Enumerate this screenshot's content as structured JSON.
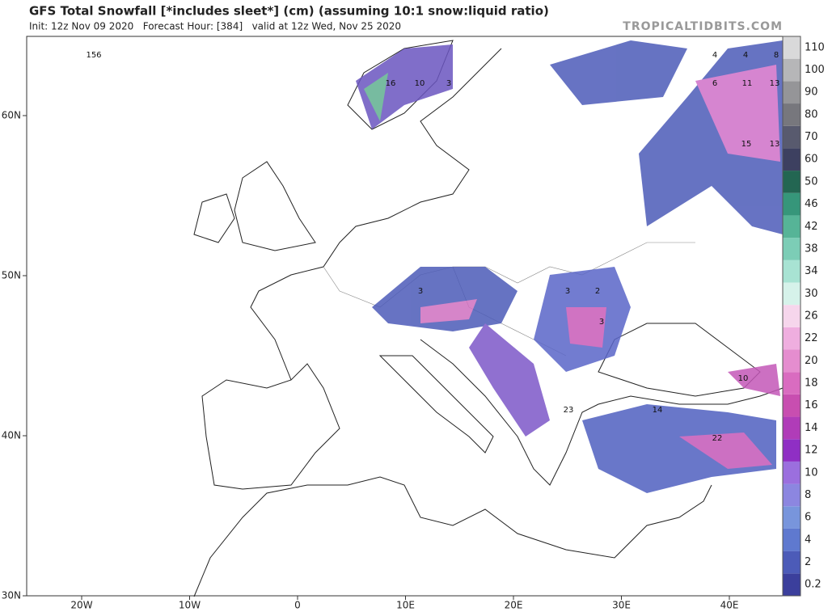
{
  "header": {
    "title": "GFS Total Snowfall [*includes sleet*] (cm) (assuming 10:1 snow:liquid ratio)",
    "subtitle": "Init: 12z Nov 09 2020   Forecast Hour: [384]   valid at 12z Wed, Nov 25 2020",
    "watermark": "TROPICALTIDBITS.COM"
  },
  "map": {
    "lon_ticks": [
      {
        "value": -20,
        "label": "20W"
      },
      {
        "value": -10,
        "label": "10W"
      },
      0,
      {
        "value": 10,
        "label": "10E"
      },
      {
        "value": 20,
        "label": "20E"
      },
      {
        "value": 30,
        "label": "30E"
      },
      {
        "value": 40,
        "label": "40E"
      }
    ],
    "lat_ticks": [
      {
        "value": 30,
        "label": "30N"
      },
      {
        "value": 40,
        "label": "40N"
      },
      {
        "value": 50,
        "label": "50N"
      },
      {
        "value": 60,
        "label": "60N"
      }
    ],
    "labels": [
      "156",
      "16",
      "10",
      "3",
      "4",
      "4",
      "8",
      "6",
      "11",
      "13",
      "15",
      "13",
      "3",
      "3",
      "2",
      "10",
      "14",
      "23",
      "22",
      "3"
    ]
  },
  "colorbar": {
    "ticks": [
      0.2,
      2,
      4,
      6,
      8,
      10,
      12,
      14,
      16,
      18,
      20,
      22,
      26,
      30,
      34,
      38,
      42,
      46,
      50,
      60,
      70,
      80,
      90,
      100,
      110
    ],
    "colors": [
      "#3b3f9c",
      "#4c5bb8",
      "#5f79cf",
      "#7895dc",
      "#8c86e0",
      "#9b6fde",
      "#8f2fc4",
      "#b03cb8",
      "#c84eb0",
      "#d96cc0",
      "#e58dcf",
      "#efaedf",
      "#f6d6ec",
      "#d6f2ea",
      "#a8e3d3",
      "#7ccdb6",
      "#56b497",
      "#36967a",
      "#236652",
      "#3d4060",
      "#585a6e",
      "#77777d",
      "#959598",
      "#b6b6b8",
      "#d9d9da"
    ]
  }
}
